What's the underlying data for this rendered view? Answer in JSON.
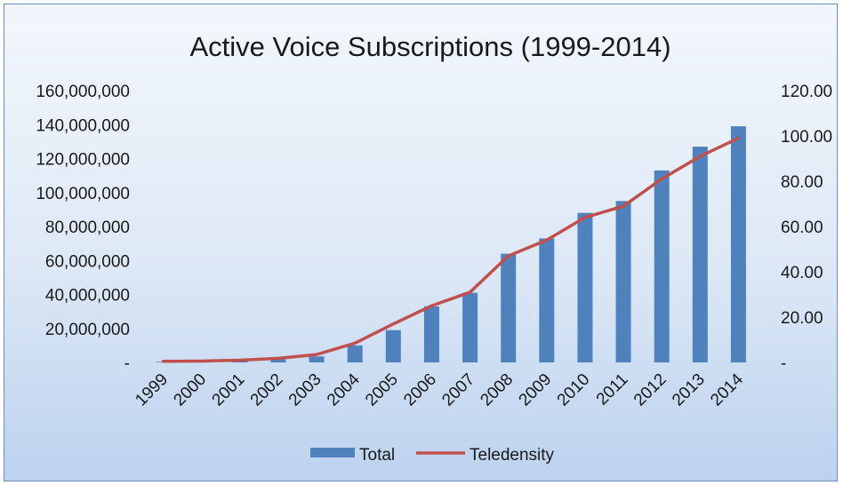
{
  "chart_data": {
    "type": "bar",
    "title": "Active Voice Subscriptions (1999-2014)",
    "categories": [
      "1999",
      "2000",
      "2001",
      "2002",
      "2003",
      "2004",
      "2005",
      "2006",
      "2007",
      "2008",
      "2009",
      "2010",
      "2011",
      "2012",
      "2013",
      "2014"
    ],
    "series": [
      {
        "name": "Total",
        "type": "bar",
        "axis": "left",
        "color": "#4f81bd",
        "values": [
          400000,
          600000,
          1000000,
          1800000,
          3500000,
          10000000,
          19000000,
          33000000,
          41000000,
          64000000,
          73000000,
          88000000,
          95000000,
          113000000,
          127000000,
          139000000
        ]
      },
      {
        "name": "Teledensity",
        "type": "line",
        "axis": "right",
        "color": "#c0504d",
        "values": [
          0.5,
          0.6,
          1.0,
          1.8,
          3.5,
          8.5,
          17.0,
          25.0,
          31.0,
          47.0,
          54.0,
          64.0,
          69.0,
          81.0,
          91.0,
          99.0
        ]
      }
    ],
    "y_left": {
      "ylim": [
        0,
        160000000
      ],
      "ticks": [
        0,
        20000000,
        40000000,
        60000000,
        80000000,
        100000000,
        120000000,
        140000000,
        160000000
      ],
      "tick_labels": [
        "-",
        "20,000,000",
        "40,000,000",
        "60,000,000",
        "80,000,000",
        "100,000,000",
        "120,000,000",
        "140,000,000",
        "160,000,000"
      ]
    },
    "y_right": {
      "ylim": [
        0,
        120
      ],
      "ticks": [
        0,
        20,
        40,
        60,
        80,
        100,
        120
      ],
      "tick_labels": [
        "-",
        "20.00",
        "40.00",
        "60.00",
        "80.00",
        "100.00",
        "120.00"
      ]
    },
    "grid": false,
    "legend": "bottom"
  }
}
